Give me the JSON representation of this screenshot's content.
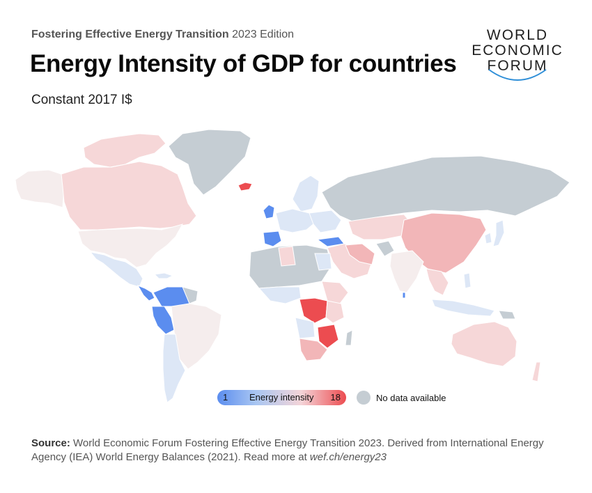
{
  "header": {
    "eyebrow_bold": "Fostering Effective Energy Transition",
    "eyebrow_rest": "2023 Edition",
    "title": "Energy Intensity of GDP for countries",
    "subtitle": "Constant 2017 I$"
  },
  "logo": {
    "line1": "WORLD",
    "line2": "ECONOMIC",
    "line3": "FORUM"
  },
  "legend": {
    "min": "1",
    "label": "Energy intensity",
    "max": "18",
    "no_data_label": "No data available",
    "colors": {
      "low": "#5b8def",
      "high": "#ec4c50",
      "no_data": "#c5cdd3"
    }
  },
  "source": {
    "label": "Source:",
    "text": "World Economic Forum Fostering Effective Energy Transition 2023. Derived from International Energy Agency (IEA) World Energy Balances (2021). Read more at",
    "link": "wef.ch/energy23"
  },
  "colors": {
    "very_low": "#5b8def",
    "low": "#a9c6f2",
    "light_low": "#dde7f6",
    "neutral": "#f5eded",
    "light_high": "#f6d7d8",
    "mid_high": "#f2b6b8",
    "high": "#ec4c50",
    "no_data": "#c5cdd3"
  }
}
